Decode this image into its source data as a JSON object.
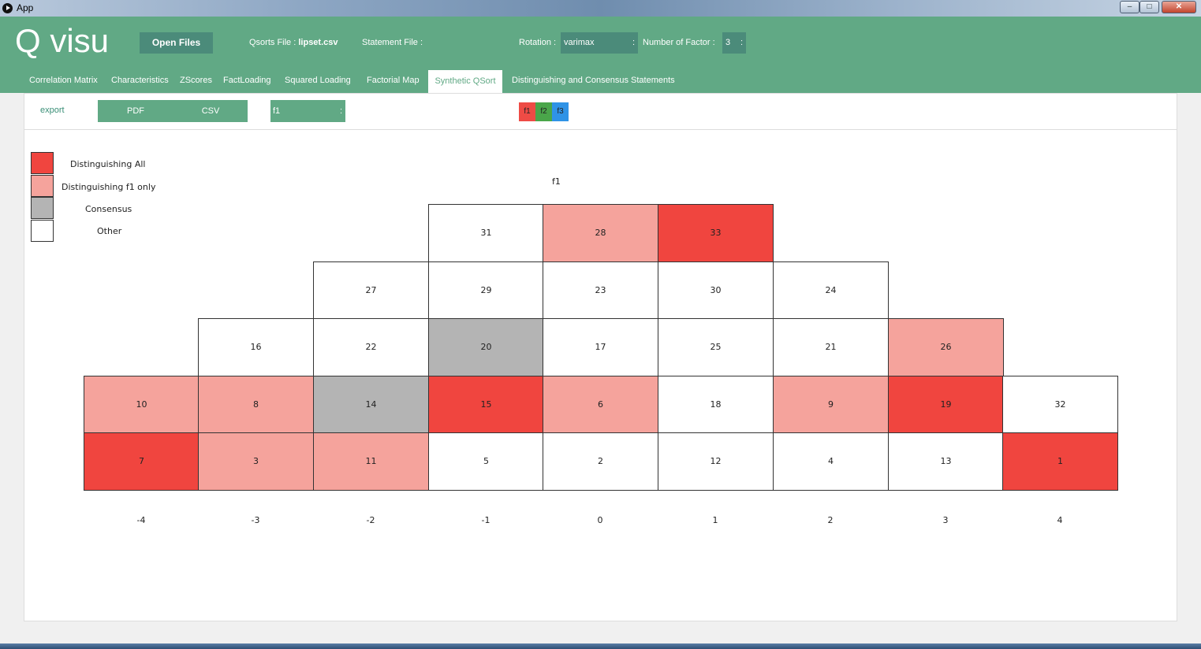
{
  "window": {
    "title": "App",
    "min": "–",
    "max": "□",
    "close": "✕"
  },
  "header": {
    "logo": "Q visu",
    "open_files": "Open Files",
    "qsorts_label": "Qsorts File :",
    "qsorts_value": "lipset.csv",
    "statement_label": "Statement File :",
    "rotation_label": "Rotation :",
    "rotation_value": "varimax",
    "factor_label": "Number of Factor :",
    "factor_value": "3",
    "arrow": ":"
  },
  "tabs": [
    "Correlation Matrix",
    "Characteristics",
    "ZScores",
    "FactLoading",
    "Squared Loading",
    "Factorial Map",
    "Synthetic QSort",
    "Distinguishing and Consensus Statements"
  ],
  "active_tab": "Synthetic QSort",
  "toolbar": {
    "export": "export",
    "pdf": "PDF",
    "csv": "CSV",
    "factor_select": "f1",
    "arrow": ":",
    "factor_buttons": [
      {
        "label": "f1",
        "color": "#ee4b45"
      },
      {
        "label": "f2",
        "color": "#4aa64a"
      },
      {
        "label": "f3",
        "color": "#2f93e6"
      }
    ]
  },
  "colors": {
    "distinguishing_all": "#f0453f",
    "distinguishing_one": "#f5a39c",
    "consensus": "#b4b4b4",
    "other": "#ffffff"
  },
  "legend": [
    {
      "label": "Distinguishing All",
      "kind": "distinguishing_all"
    },
    {
      "label": "Distinguishing f1 only",
      "kind": "distinguishing_one"
    },
    {
      "label": "Consensus",
      "kind": "consensus"
    },
    {
      "label": "Other",
      "kind": "other"
    }
  ],
  "chart_data": {
    "type": "table",
    "title": "f1",
    "columns": [
      "-4",
      "-3",
      "-2",
      "-1",
      "0",
      "1",
      "2",
      "3",
      "4"
    ],
    "column_cells": [
      [
        {
          "n": "10",
          "k": "distinguishing_one"
        },
        {
          "n": "7",
          "k": "distinguishing_all"
        }
      ],
      [
        {
          "n": "16",
          "k": "other"
        },
        {
          "n": "8",
          "k": "distinguishing_one"
        },
        {
          "n": "3",
          "k": "distinguishing_one"
        }
      ],
      [
        {
          "n": "27",
          "k": "other"
        },
        {
          "n": "22",
          "k": "other"
        },
        {
          "n": "14",
          "k": "consensus"
        },
        {
          "n": "11",
          "k": "distinguishing_one"
        }
      ],
      [
        {
          "n": "31",
          "k": "other"
        },
        {
          "n": "29",
          "k": "other"
        },
        {
          "n": "20",
          "k": "consensus"
        },
        {
          "n": "15",
          "k": "distinguishing_all"
        },
        {
          "n": "5",
          "k": "other"
        }
      ],
      [
        {
          "n": "28",
          "k": "distinguishing_one"
        },
        {
          "n": "23",
          "k": "other"
        },
        {
          "n": "17",
          "k": "other"
        },
        {
          "n": "6",
          "k": "distinguishing_one"
        },
        {
          "n": "2",
          "k": "other"
        }
      ],
      [
        {
          "n": "33",
          "k": "distinguishing_all"
        },
        {
          "n": "30",
          "k": "other"
        },
        {
          "n": "25",
          "k": "other"
        },
        {
          "n": "18",
          "k": "other"
        },
        {
          "n": "12",
          "k": "other"
        }
      ],
      [
        {
          "n": "24",
          "k": "other"
        },
        {
          "n": "21",
          "k": "other"
        },
        {
          "n": "9",
          "k": "distinguishing_one"
        },
        {
          "n": "4",
          "k": "other"
        }
      ],
      [
        {
          "n": "26",
          "k": "distinguishing_one"
        },
        {
          "n": "19",
          "k": "distinguishing_all"
        },
        {
          "n": "13",
          "k": "other"
        }
      ],
      [
        {
          "n": "32",
          "k": "other"
        },
        {
          "n": "1",
          "k": "distinguishing_all"
        }
      ]
    ]
  }
}
